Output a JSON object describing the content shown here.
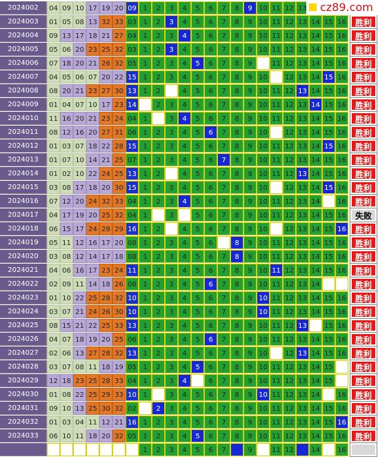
{
  "logo": "cz89.com",
  "cell_labels": [
    "1",
    "2",
    "3",
    "4",
    "5",
    "6",
    "7",
    "8",
    "9",
    "10",
    "11",
    "12",
    "13",
    "14",
    "15",
    "16"
  ],
  "rows": [
    {
      "period": "2024002",
      "reds": [
        "04",
        "09",
        "10",
        "17",
        "19",
        "20"
      ],
      "blue": "09",
      "hit": 9,
      "blanks": []
    },
    {
      "period": "2024003",
      "reds": [
        "01",
        "05",
        "08",
        "13",
        "32",
        "33"
      ],
      "blue": "03",
      "hit": 3,
      "blanks": [],
      "result": "胜利"
    },
    {
      "period": "2024004",
      "reds": [
        "09",
        "13",
        "17",
        "18",
        "21",
        "27"
      ],
      "blue": "04",
      "hit": 4,
      "blanks": [],
      "result": "胜利"
    },
    {
      "period": "2024005",
      "reds": [
        "05",
        "06",
        "20",
        "23",
        "25",
        "32"
      ],
      "blue": "03",
      "hit": 3,
      "blanks": [],
      "result": "胜利"
    },
    {
      "period": "2024006",
      "reds": [
        "07",
        "18",
        "20",
        "21",
        "26",
        "32"
      ],
      "blue": "05",
      "hit": 5,
      "blanks": [
        10
      ],
      "result": "胜利"
    },
    {
      "period": "2024007",
      "reds": [
        "04",
        "05",
        "06",
        "07",
        "20",
        "22"
      ],
      "blue": "15",
      "hit": 15,
      "blanks": [
        11
      ],
      "result": "胜利"
    },
    {
      "period": "2024008",
      "reds": [
        "08",
        "20",
        "21",
        "23",
        "27",
        "30"
      ],
      "blue": "13",
      "hit": 13,
      "blanks": [
        3
      ],
      "result": "胜利"
    },
    {
      "period": "2024009",
      "reds": [
        "01",
        "04",
        "07",
        "10",
        "17",
        "23"
      ],
      "blue": "14",
      "hit": 14,
      "blanks": [
        1
      ],
      "result": "胜利"
    },
    {
      "period": "2024010",
      "reds": [
        "11",
        "16",
        "20",
        "21",
        "23",
        "24"
      ],
      "blue": "04",
      "hit": 4,
      "blanks": [
        2
      ],
      "result": "胜利"
    },
    {
      "period": "2024011",
      "reds": [
        "08",
        "12",
        "16",
        "20",
        "27",
        "31"
      ],
      "blue": "06",
      "hit": 6,
      "blanks": [
        11
      ],
      "result": "胜利"
    },
    {
      "period": "2024012",
      "reds": [
        "01",
        "03",
        "07",
        "18",
        "22",
        "28"
      ],
      "blue": "15",
      "hit": 15,
      "blanks": [],
      "result": "胜利"
    },
    {
      "period": "2024013",
      "reds": [
        "01",
        "07",
        "10",
        "14",
        "21",
        "25"
      ],
      "blue": "07",
      "hit": 7,
      "blanks": [],
      "result": "胜利"
    },
    {
      "period": "2024014",
      "reds": [
        "01",
        "02",
        "10",
        "22",
        "24",
        "25"
      ],
      "blue": "13",
      "hit": 13,
      "blanks": [
        3
      ],
      "result": "胜利"
    },
    {
      "period": "2024015",
      "reds": [
        "03",
        "08",
        "17",
        "18",
        "20",
        "30"
      ],
      "blue": "15",
      "hit": 15,
      "blanks": [
        11
      ],
      "result": "胜利"
    },
    {
      "period": "2024016",
      "reds": [
        "07",
        "12",
        "20",
        "24",
        "32",
        "33"
      ],
      "blue": "04",
      "hit": 4,
      "blanks": [
        15
      ],
      "result": "胜利"
    },
    {
      "period": "2024017",
      "reds": [
        "04",
        "17",
        "19",
        "20",
        "25",
        "32"
      ],
      "blue": "04",
      "hit": 0,
      "blanks": [
        2,
        4
      ],
      "result": "失败"
    },
    {
      "period": "2024018",
      "reds": [
        "06",
        "15",
        "17",
        "24",
        "28",
        "29"
      ],
      "blue": "16",
      "hit": 16,
      "blanks": [
        3,
        11
      ],
      "result": "胜利"
    },
    {
      "period": "2024019",
      "reds": [
        "05",
        "11",
        "12",
        "16",
        "17",
        "20"
      ],
      "blue": "08",
      "hit": 8,
      "blanks": [
        7
      ],
      "result": "胜利"
    },
    {
      "period": "2024020",
      "reds": [
        "03",
        "08",
        "12",
        "14",
        "17",
        "18"
      ],
      "blue": "08",
      "hit": 8,
      "blanks": [],
      "result": "胜利"
    },
    {
      "period": "2024021",
      "reds": [
        "04",
        "06",
        "16",
        "17",
        "23",
        "24"
      ],
      "blue": "11",
      "hit": 11,
      "blanks": [],
      "result": "胜利"
    },
    {
      "period": "2024022",
      "reds": [
        "02",
        "09",
        "11",
        "14",
        "18",
        "26"
      ],
      "blue": "06",
      "hit": 6,
      "blanks": [
        15,
        16
      ],
      "result": "胜利"
    },
    {
      "period": "2024023",
      "reds": [
        "01",
        "10",
        "22",
        "25",
        "28",
        "32"
      ],
      "blue": "10",
      "hit": 10,
      "blanks": [],
      "result": "胜利"
    },
    {
      "period": "2024024",
      "reds": [
        "03",
        "07",
        "21",
        "24",
        "26",
        "30"
      ],
      "blue": "10",
      "hit": 10,
      "blanks": [],
      "result": "胜利"
    },
    {
      "period": "2024025",
      "reds": [
        "08",
        "15",
        "21",
        "22",
        "25",
        "33"
      ],
      "blue": "13",
      "hit": 13,
      "blanks": [
        14
      ],
      "result": "胜利"
    },
    {
      "period": "2024026",
      "reds": [
        "04",
        "07",
        "18",
        "19",
        "20",
        "25"
      ],
      "blue": "06",
      "hit": 6,
      "blanks": [],
      "result": "胜利"
    },
    {
      "period": "2024027",
      "reds": [
        "02",
        "06",
        "13",
        "27",
        "28",
        "32"
      ],
      "blue": "13",
      "hit": 13,
      "blanks": [
        11
      ],
      "result": "胜利"
    },
    {
      "period": "2024028",
      "reds": [
        "03",
        "07",
        "08",
        "11",
        "18",
        "19"
      ],
      "blue": "05",
      "hit": 5,
      "blanks": [
        16
      ],
      "result": "胜利"
    },
    {
      "period": "2024029",
      "reds": [
        "12",
        "18",
        "23",
        "25",
        "28",
        "33"
      ],
      "blue": "04",
      "hit": 4,
      "blanks": [
        5,
        16
      ],
      "result": "胜利"
    },
    {
      "period": "2024030",
      "reds": [
        "01",
        "08",
        "22",
        "25",
        "29",
        "33"
      ],
      "blue": "10",
      "hit": 10,
      "blanks": [
        2,
        15
      ],
      "result": "胜利"
    },
    {
      "period": "2024031",
      "reds": [
        "09",
        "10",
        "13",
        "25",
        "30",
        "32"
      ],
      "blue": "02",
      "hit": 2,
      "blanks": [
        1
      ],
      "result": "胜利"
    },
    {
      "period": "2024032",
      "reds": [
        "01",
        "03",
        "04",
        "11",
        "12",
        "21"
      ],
      "blue": "16",
      "hit": 16,
      "blanks": [],
      "result": "胜利"
    },
    {
      "period": "2024033",
      "reds": [
        "06",
        "10",
        "11",
        "18",
        "20",
        "32"
      ],
      "blue": "05",
      "hit": 5,
      "blanks": [],
      "result": "胜利"
    }
  ],
  "footer": {
    "marks": [
      8,
      13
    ],
    "blanks": [
      10,
      15
    ]
  }
}
